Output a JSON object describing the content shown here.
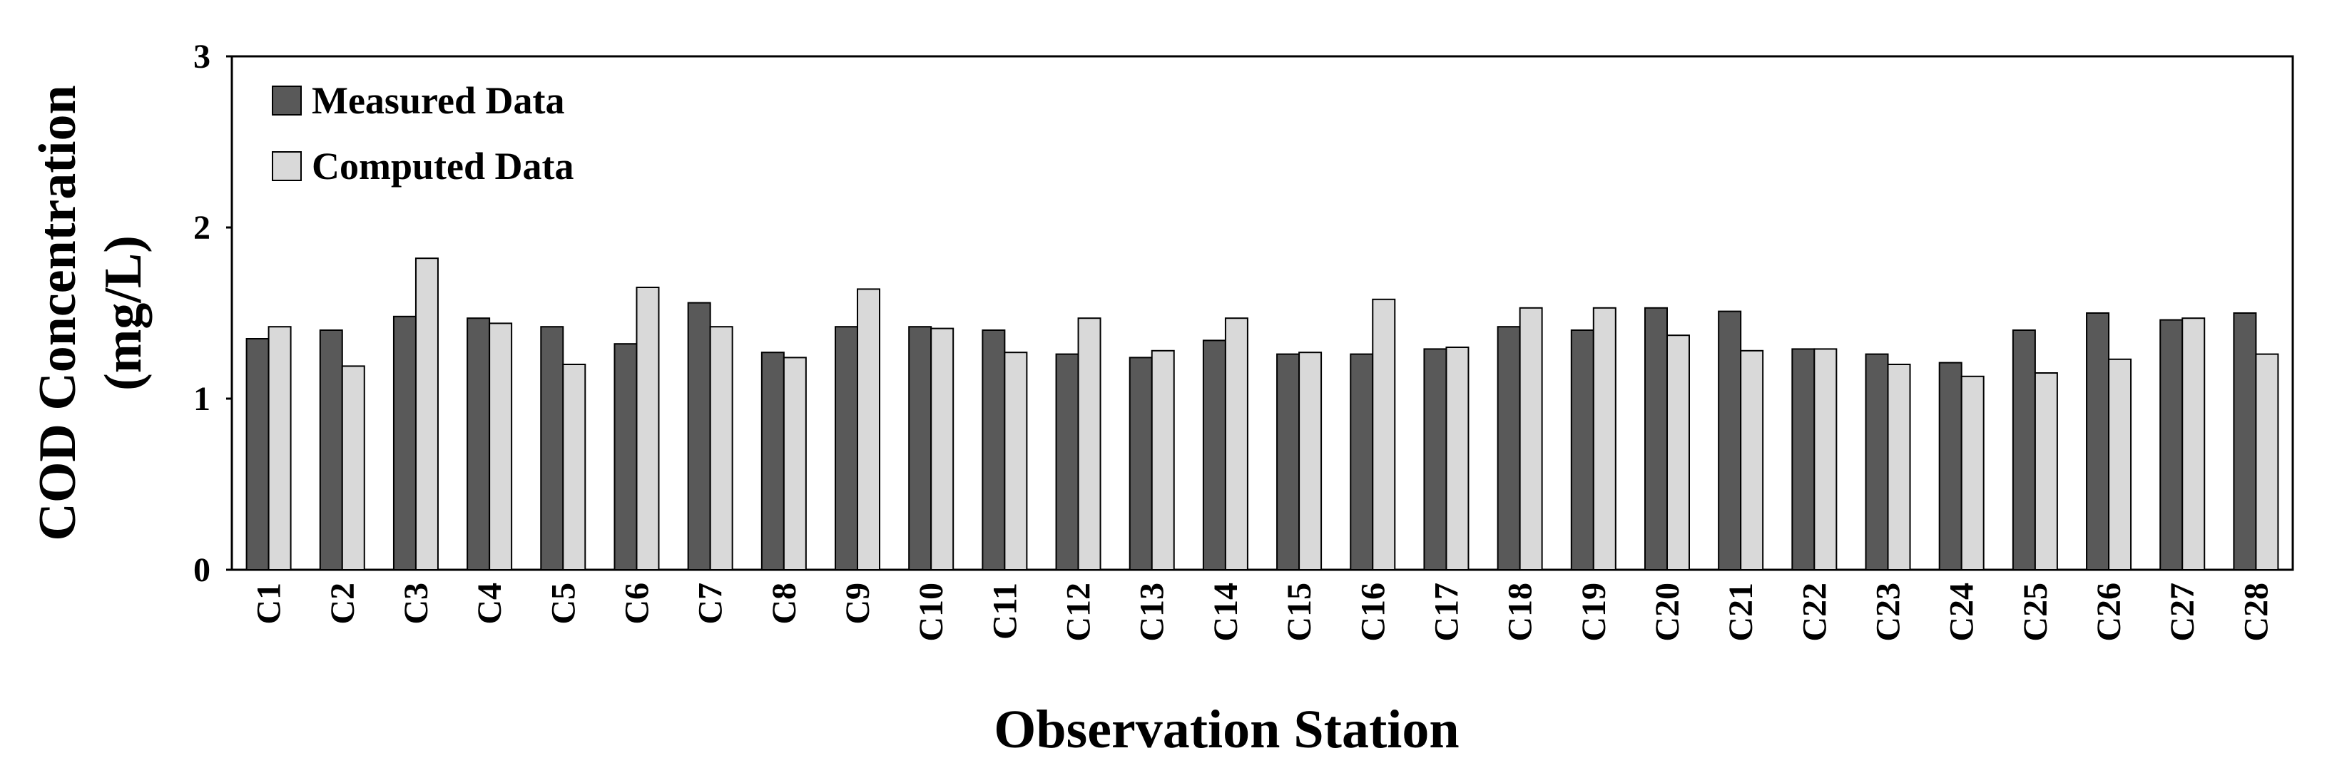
{
  "chart_data": {
    "type": "bar",
    "ylabel": [
      "COD Concentration",
      "(mg/L)"
    ],
    "xlabel": "Observation Station",
    "categories": [
      "C1",
      "C2",
      "C3",
      "C4",
      "C5",
      "C6",
      "C7",
      "C8",
      "C9",
      "C10",
      "C11",
      "C12",
      "C13",
      "C14",
      "C15",
      "C16",
      "C17",
      "C18",
      "C19",
      "C20",
      "C21",
      "C22",
      "C23",
      "C24",
      "C25",
      "C26",
      "C27",
      "C28"
    ],
    "series": [
      {
        "name": "Measured Data",
        "color": "#595959",
        "values": [
          1.35,
          1.4,
          1.48,
          1.47,
          1.42,
          1.32,
          1.56,
          1.27,
          1.42,
          1.42,
          1.4,
          1.26,
          1.24,
          1.34,
          1.26,
          1.26,
          1.29,
          1.42,
          1.4,
          1.53,
          1.51,
          1.29,
          1.26,
          1.21,
          1.4,
          1.5,
          1.46,
          1.5
        ]
      },
      {
        "name": "Computed Data",
        "color": "#d9d9d9",
        "values": [
          1.42,
          1.19,
          1.82,
          1.44,
          1.2,
          1.65,
          1.42,
          1.24,
          1.64,
          1.41,
          1.27,
          1.47,
          1.28,
          1.47,
          1.27,
          1.58,
          1.3,
          1.53,
          1.53,
          1.37,
          1.28,
          1.29,
          1.2,
          1.13,
          1.15,
          1.23,
          1.47,
          1.26
        ]
      }
    ],
    "ylim": [
      0,
      3
    ],
    "yticks": [
      0,
      1,
      2,
      3
    ],
    "grid": false,
    "legend": "top-left"
  }
}
